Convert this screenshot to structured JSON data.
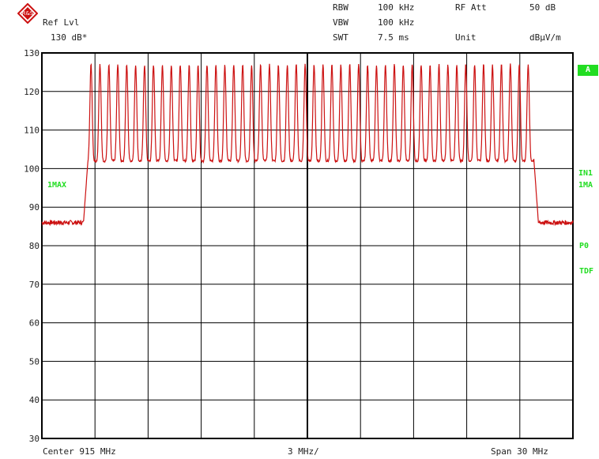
{
  "header": {
    "ref_lvl_label": "Ref Lvl",
    "ref_lvl_value": "130 dB*",
    "rbw_label": "RBW",
    "rbw_value": "100 kHz",
    "vbw_label": "VBW",
    "vbw_value": "100 kHz",
    "swt_label": "SWT",
    "swt_value": "7.5 ms",
    "rf_att_label": "RF Att",
    "rf_att_value": "50 dB",
    "unit_label": "Unit",
    "unit_value": "dBµV/m"
  },
  "footer": {
    "center": "Center 915 MHz",
    "per_div": "3 MHz/",
    "span": "Span 30 MHz"
  },
  "side_labels": {
    "trace_mode": "1MAX",
    "a": "A",
    "in1": "IN1",
    "ma1": "1MA",
    "p0": "P0",
    "tdf": "TDF"
  },
  "colors": {
    "trace": "#cc1111",
    "annotation": "#22dd22",
    "grid": "#000000"
  },
  "chart_data": {
    "type": "line",
    "x_unit": "MHz",
    "xlim": [
      900,
      930
    ],
    "ylim": [
      30,
      130
    ],
    "y_ticks": [
      30,
      40,
      50,
      60,
      70,
      80,
      90,
      100,
      110,
      120,
      130
    ],
    "grid": true,
    "series": [
      {
        "description": "max-hold spectrum trace: noise floor ~86 dBuV/m outside 902-928 MHz, 50 hopping channels peaking ~127 dBuV/m with ~102 dBuV/m minima between them",
        "noise_floor": 86,
        "band_start": 902.6,
        "band_end": 927.8,
        "channel_count": 50,
        "peak_level": 127,
        "valley_level": 102
      }
    ]
  }
}
